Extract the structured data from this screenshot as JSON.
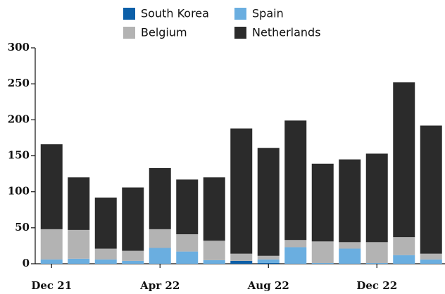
{
  "chart_data": {
    "type": "bar",
    "stacked": true,
    "categories": [
      "Dec 21",
      null,
      null,
      null,
      "Apr 22",
      null,
      null,
      null,
      "Aug 22",
      null,
      null,
      null,
      "Dec 22",
      null,
      null
    ],
    "series": [
      {
        "name": "South Korea",
        "color": "#0c5fa8",
        "values": [
          0,
          0,
          0,
          0,
          0,
          0,
          0,
          4,
          1,
          0,
          0,
          0,
          0,
          0,
          0
        ]
      },
      {
        "name": "Spain",
        "color": "#6aaee0",
        "values": [
          6,
          7,
          6,
          4,
          22,
          17,
          5,
          0,
          5,
          23,
          1,
          21,
          1,
          12,
          6
        ]
      },
      {
        "name": "Belgium",
        "color": "#b3b3b3",
        "values": [
          42,
          40,
          15,
          14,
          26,
          24,
          27,
          10,
          5,
          10,
          30,
          9,
          29,
          25,
          8
        ]
      },
      {
        "name": "Netherlands",
        "color": "#2b2b2b",
        "values": [
          118,
          73,
          71,
          88,
          85,
          76,
          88,
          174,
          150,
          166,
          108,
          115,
          123,
          215,
          178
        ]
      }
    ],
    "ylim": [
      0,
      300
    ],
    "yticks": [
      0,
      50,
      100,
      150,
      200,
      250,
      300
    ],
    "grid": false
  }
}
